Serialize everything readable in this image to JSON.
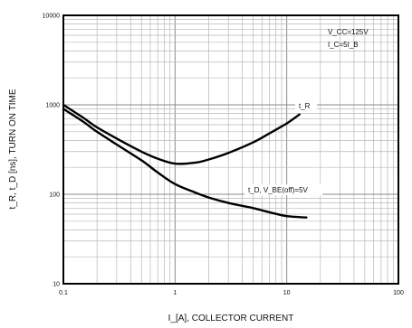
{
  "chart_data": {
    "type": "line",
    "xscale": "log",
    "yscale": "log",
    "xlim": [
      0.1,
      100
    ],
    "ylim": [
      10,
      10000
    ],
    "grid": true,
    "xlabel": "I_[A], COLLECTOR CURRENT",
    "ylabel": "t_R, t_D [ns], TURN ON TIME",
    "x_ticks": [
      "0.1",
      "1",
      "10",
      "100"
    ],
    "y_ticks": [
      "10",
      "100",
      "1000",
      "10000"
    ],
    "annotations": [
      "V_CC=125V",
      "I_C=5I_B"
    ],
    "series": [
      {
        "name": "t_R",
        "points": [
          [
            0.1,
            1000
          ],
          [
            0.15,
            720
          ],
          [
            0.2,
            560
          ],
          [
            0.3,
            420
          ],
          [
            0.5,
            300
          ],
          [
            0.7,
            250
          ],
          [
            1.0,
            220
          ],
          [
            1.5,
            225
          ],
          [
            2,
            245
          ],
          [
            3,
            290
          ],
          [
            5,
            380
          ],
          [
            7,
            480
          ],
          [
            10,
            620
          ],
          [
            13,
            780
          ]
        ]
      },
      {
        "name": "t_D, V_BE(off)=5V",
        "points": [
          [
            0.1,
            900
          ],
          [
            0.15,
            650
          ],
          [
            0.2,
            500
          ],
          [
            0.3,
            360
          ],
          [
            0.5,
            240
          ],
          [
            0.7,
            175
          ],
          [
            1.0,
            130
          ],
          [
            1.5,
            105
          ],
          [
            2,
            92
          ],
          [
            3,
            80
          ],
          [
            5,
            70
          ],
          [
            7,
            63
          ],
          [
            10,
            57
          ],
          [
            15,
            55
          ]
        ]
      }
    ]
  }
}
